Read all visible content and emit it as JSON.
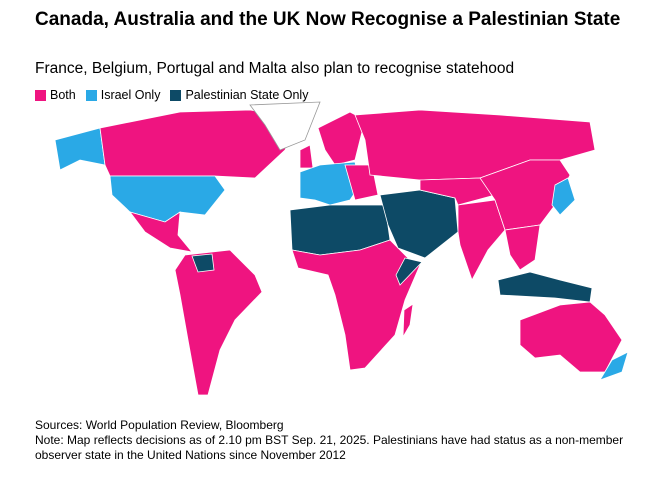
{
  "header": {
    "title": "Canada, Australia and the UK Now Recognise a Palestinian State",
    "subtitle": "France, Belgium, Portugal and Malta also plan to recognise statehood"
  },
  "legend": [
    {
      "label": "Both",
      "color": "#ef1480"
    },
    {
      "label": "Israel Only",
      "color": "#2aa9e6"
    },
    {
      "label": "Palestinian State Only",
      "color": "#0d4a66"
    }
  ],
  "footer": {
    "sources": "Sources: World Population Review, Bloomberg",
    "note": "Note: Map reflects decisions as of 2.10 pm BST Sep. 21, 2025. Palestinians have had status as a non-member observer state in the United Nations since November 2012"
  }
}
